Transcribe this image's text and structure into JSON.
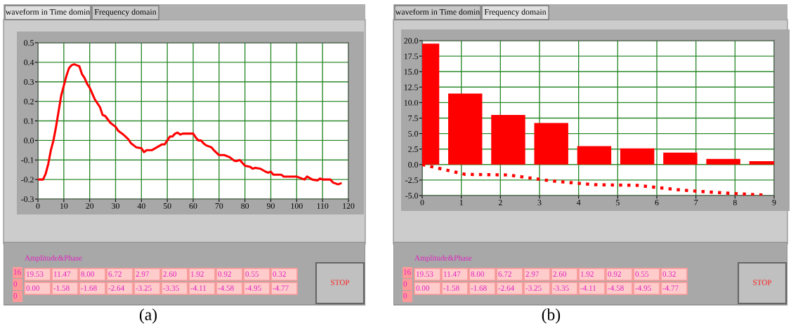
{
  "chart_data": [
    {
      "type": "line",
      "annotations": [
        "waveform in Time domin",
        "Frequency domain"
      ],
      "xlim": [
        0,
        120
      ],
      "xticks": [
        0,
        10,
        20,
        30,
        40,
        50,
        60,
        70,
        80,
        90,
        100,
        110,
        120
      ],
      "ylim": [
        -0.3,
        0.5
      ],
      "yticks": [
        {
          "value": -0.3,
          "label": "-0.3"
        },
        {
          "value": -0.2,
          "label": "-0.2"
        },
        {
          "value": -0.1,
          "label": "-0.1"
        },
        {
          "value": 0,
          "label": "0.0"
        },
        {
          "value": 0.1,
          "label": "0.1"
        },
        {
          "value": 0.2,
          "label": "0.2"
        },
        {
          "value": 0.3,
          "label": "0.3"
        },
        {
          "value": 0.4,
          "label": "0.4"
        },
        {
          "value": 0.5,
          "label": "0.5"
        }
      ],
      "grid": true,
      "line_style": "solid",
      "marker": "none",
      "series": [
        {
          "color": "#ff0000",
          "x": [
            0,
            2,
            3,
            4,
            5,
            6,
            7,
            8,
            9,
            10,
            11,
            12,
            13,
            14,
            15,
            16,
            17,
            18,
            19,
            20,
            22,
            24,
            25,
            26,
            28,
            30,
            31,
            33,
            35,
            36,
            38,
            40,
            41,
            42,
            44,
            46,
            48,
            49,
            51,
            52,
            53,
            54,
            55,
            56,
            60,
            61,
            62,
            63,
            64,
            65,
            67,
            68,
            70,
            72,
            74,
            76,
            77,
            78,
            80,
            82,
            83,
            84,
            86,
            88,
            89,
            90,
            91,
            94,
            95,
            100,
            101,
            103,
            104,
            106,
            108,
            109,
            110,
            113,
            114,
            116,
            117
          ],
          "values": [
            -0.2,
            -0.2,
            -0.17,
            -0.12,
            -0.05,
            0.0,
            0.07,
            0.15,
            0.23,
            0.28,
            0.33,
            0.37,
            0.385,
            0.39,
            0.385,
            0.38,
            0.34,
            0.32,
            0.29,
            0.27,
            0.21,
            0.17,
            0.13,
            0.125,
            0.09,
            0.07,
            0.05,
            0.03,
            0.005,
            -0.015,
            -0.035,
            -0.04,
            -0.06,
            -0.05,
            -0.05,
            -0.035,
            -0.02,
            -0.02,
            0.02,
            0.02,
            0.035,
            0.04,
            0.03,
            0.035,
            0.035,
            0.015,
            0.0,
            0.0,
            -0.015,
            -0.025,
            -0.035,
            -0.05,
            -0.075,
            -0.075,
            -0.085,
            -0.105,
            -0.105,
            -0.1,
            -0.13,
            -0.135,
            -0.145,
            -0.14,
            -0.145,
            -0.16,
            -0.165,
            -0.16,
            -0.175,
            -0.175,
            -0.185,
            -0.185,
            -0.19,
            -0.2,
            -0.185,
            -0.2,
            -0.205,
            -0.195,
            -0.2,
            -0.2,
            -0.215,
            -0.225,
            -0.22
          ]
        }
      ]
    },
    {
      "type": "other",
      "title": "Amplitude&Phase",
      "annotations": [
        "16",
        "0",
        "0",
        "19.53",
        "11.47",
        "8.00",
        "6.72",
        "2.97",
        "2.60",
        "1.92",
        "0.92",
        "0.55",
        "0.32",
        "0.00",
        "-1.58",
        "-1.68",
        "-2.64",
        "-3.25",
        "-3.35",
        "-4.11",
        "-4.58",
        "-4.95",
        "-4.77",
        "STOP",
        "(a)"
      ]
    },
    {
      "type": "bar",
      "annotations": [
        "waveform in Time domin",
        "Frequency domain"
      ],
      "xlim": [
        0,
        9
      ],
      "xticks": [
        0,
        1,
        2,
        3,
        4,
        5,
        6,
        7,
        8,
        9
      ],
      "ylim": [
        -5,
        20
      ],
      "yticks": [
        {
          "value": -5,
          "label": "-5.0"
        },
        {
          "value": -2.5,
          "label": "-2.5"
        },
        {
          "value": 0,
          "label": "0.0"
        },
        {
          "value": 2.5,
          "label": "2.5"
        },
        {
          "value": 5,
          "label": "5.0"
        },
        {
          "value": 7.5,
          "label": "7.5"
        },
        {
          "value": 10,
          "label": "10.0"
        },
        {
          "value": 12.5,
          "label": "12.5"
        },
        {
          "value": 15,
          "label": "15.0"
        },
        {
          "value": 17.5,
          "label": "17.5"
        },
        {
          "value": 20,
          "label": "20.0"
        }
      ],
      "grid": true,
      "series": [
        {
          "type": "bar",
          "color": "#ff0000",
          "x": [
            0,
            1.1,
            2.2,
            3.3,
            4.4,
            5.5,
            6.6,
            7.7,
            8.8
          ],
          "values": [
            19.53,
            11.47,
            8.0,
            6.72,
            2.97,
            2.6,
            1.92,
            0.92,
            0.55
          ]
        },
        {
          "type": "line",
          "line_style": "dotted",
          "color": "#ff0000",
          "x": [
            0,
            1.1,
            2.2,
            3.3,
            4.4,
            5.5,
            6.6,
            7.7,
            8.8
          ],
          "values": [
            0.0,
            -1.58,
            -1.68,
            -2.64,
            -3.25,
            -3.35,
            -4.11,
            -4.58,
            -4.95
          ]
        }
      ]
    },
    {
      "type": "other",
      "title": "Amplitude&Phase",
      "annotations": [
        "16",
        "0",
        "0",
        "19.53",
        "11.47",
        "8.00",
        "6.72",
        "2.97",
        "2.60",
        "1.92",
        "0.92",
        "0.55",
        "0.32",
        "0.00",
        "-1.58",
        "-1.68",
        "-2.64",
        "-3.25",
        "-3.35",
        "-4.11",
        "-4.58",
        "-4.95",
        "-4.77",
        "STOP",
        "(b)"
      ]
    }
  ]
}
